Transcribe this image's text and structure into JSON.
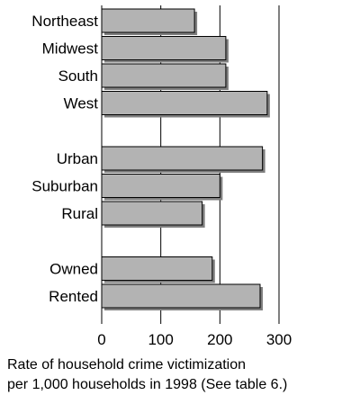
{
  "chart_data": {
    "type": "bar",
    "orientation": "horizontal",
    "groups": [
      [
        "Northeast",
        "Midwest",
        "South",
        "West"
      ],
      [
        "Urban",
        "Suburban",
        "Rural"
      ],
      [
        "Owned",
        "Rented"
      ]
    ],
    "categories": [
      "Northeast",
      "Midwest",
      "South",
      "West",
      "Urban",
      "Suburban",
      "Rural",
      "Owned",
      "Rented"
    ],
    "values": [
      157,
      210,
      210,
      280,
      272,
      200,
      170,
      187,
      268
    ],
    "xlim": [
      0,
      300
    ],
    "xticks": [
      0,
      100,
      200,
      300
    ],
    "xtick_labels": [
      "0",
      "100",
      "200",
      "300"
    ],
    "xlabel_lines": [
      "Rate of household crime victimization",
      "per 1,000 households in 1998  (See table 6.)"
    ],
    "grid": "vertical gridlines at 100, 200, 300",
    "colors": {
      "bar_fill": "#b3b3b3",
      "bar_edge": "#000000",
      "shadow": "#7f7f7f",
      "grid": "#000000"
    }
  }
}
